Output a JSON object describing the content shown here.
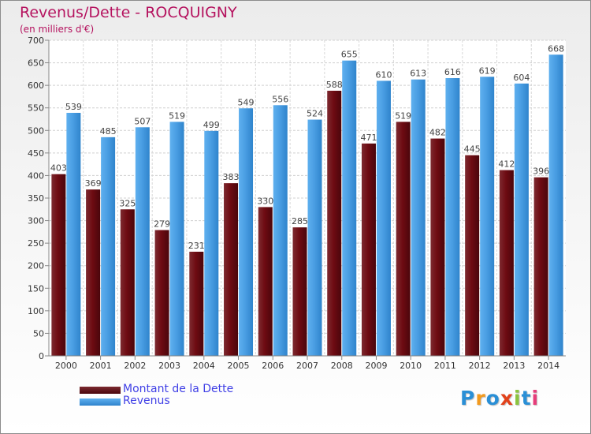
{
  "colors": {
    "dette": "#6e0b12",
    "dette_dark": "#4a060c",
    "dette_light": "#7d2a30",
    "revenus": "#4a9ee3",
    "revenus_dark": "#2f84cc",
    "revenus_light": "#5fb0ef",
    "title": "#b5135f",
    "legend_text": "#4040e6"
  },
  "chart_data": {
    "type": "bar",
    "title": "Revenus/Dette - ROCQUIGNY",
    "subtitle": "(en milliers d'€)",
    "xlabel": "",
    "ylabel": "",
    "ylim": [
      0,
      700
    ],
    "yticks": [
      0,
      50,
      100,
      150,
      200,
      250,
      300,
      350,
      400,
      450,
      500,
      550,
      600,
      650,
      700
    ],
    "grid": true,
    "legend_position": "bottom-left",
    "categories": [
      "2000",
      "2001",
      "2002",
      "2003",
      "2004",
      "2005",
      "2006",
      "2007",
      "2008",
      "2009",
      "2010",
      "2011",
      "2012",
      "2013",
      "2014"
    ],
    "series": [
      {
        "name": "Montant de la Dette",
        "values": [
          403,
          369,
          325,
          279,
          231,
          383,
          330,
          285,
          588,
          471,
          519,
          482,
          445,
          412,
          396
        ]
      },
      {
        "name": "Revenus",
        "values": [
          539,
          485,
          507,
          519,
          499,
          549,
          556,
          524,
          655,
          610,
          613,
          616,
          619,
          604,
          668
        ]
      }
    ]
  },
  "logo": {
    "letters": [
      "P",
      "r",
      "o",
      "x",
      "i",
      "t",
      "i"
    ],
    "letter_colors": [
      "#2a8fd6",
      "#f29a1f",
      "#2a8fd6",
      "#e2421b",
      "#8bc43f",
      "#2a8fd6",
      "#e63d7a"
    ]
  }
}
